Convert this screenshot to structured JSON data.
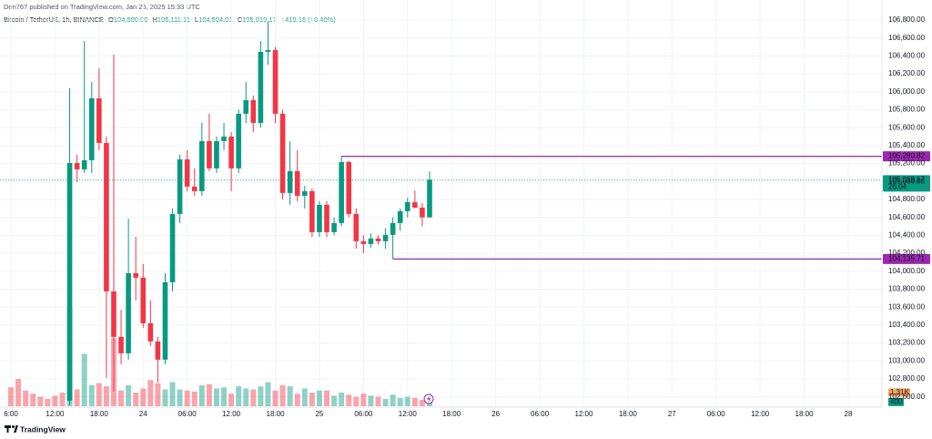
{
  "header": {
    "publisher": "Den767 published on TradingView.com, Jan 25, 2025 15:33 UTC"
  },
  "chart_data": {
    "type": "candlestick",
    "symbol": "Bitcoin / TetherUS, 1h, BINANCE",
    "legend": [
      {
        "label": "O",
        "value": "104,600.00"
      },
      {
        "label": "H",
        "value": "105,111.11"
      },
      {
        "label": "L",
        "value": "104,594.01"
      },
      {
        "label": "C",
        "value": "105,019.17"
      }
    ],
    "change": "+419.16 (+0.40%)",
    "categories": [
      "6:00",
      null,
      null,
      null,
      null,
      null,
      "12:00",
      null,
      null,
      null,
      null,
      null,
      "18:00",
      null,
      null,
      null,
      null,
      null,
      "24",
      null,
      null,
      null,
      null,
      null,
      "06:00",
      null,
      null,
      null,
      null,
      null,
      "12:00",
      null,
      null,
      null,
      null,
      null,
      "18:00",
      null,
      null,
      null,
      null,
      null,
      "25",
      null,
      null,
      null,
      null,
      null,
      "06:00",
      null,
      null,
      null,
      null,
      null,
      "12:00",
      null,
      null,
      null,
      null,
      null,
      "18:00",
      null,
      null,
      null,
      null,
      null,
      "26",
      null,
      null,
      null,
      null,
      null,
      "06:00",
      null,
      null,
      null,
      null,
      null,
      "12:00",
      null,
      null,
      null,
      null,
      null,
      "18:00",
      null,
      null,
      null,
      null,
      null,
      "27",
      null,
      null,
      null,
      null,
      null,
      "06:00",
      null,
      null,
      null,
      null,
      null,
      "12:00",
      null,
      null,
      null,
      null,
      null,
      "18:00",
      null,
      null,
      null,
      null,
      null,
      "28",
      null,
      null,
      null,
      null
    ],
    "open": [
      null,
      null,
      null,
      null,
      null,
      null,
      null,
      null,
      102557,
      105206,
      105135,
      105237,
      105927,
      105430,
      103775,
      103268,
      103085,
      103978,
      103928,
      103420,
      103217,
      103014,
      103877,
      104638,
      105247,
      104943,
      104892,
      105450,
      105146,
      105450,
      105501,
      105146,
      105755,
      105907,
      105653,
      106445,
      106465,
      105755,
      104872,
      105115,
      104841,
      104892,
      104435,
      104740,
      104435,
      104537,
      105217,
      104638,
      104334,
      104303,
      104364,
      104334,
      104405,
      104537,
      104669,
      104770,
      104709,
      104600,
      null,
      null,
      null,
      null,
      null,
      null,
      null,
      null,
      null,
      null,
      null,
      null,
      null,
      null,
      null,
      null,
      null,
      null,
      null,
      null,
      null,
      null,
      null,
      null,
      null,
      null,
      null,
      null,
      null,
      null,
      null,
      null,
      null,
      null,
      null,
      null,
      null,
      null,
      null,
      null,
      null,
      null,
      null,
      null,
      null,
      null,
      null,
      null,
      null,
      null,
      null,
      null,
      null,
      null,
      null,
      null,
      null,
      null,
      null,
      null,
      null
    ],
    "high": [
      null,
      null,
      null,
      null,
      null,
      null,
      null,
      null,
      106039,
      105298,
      106567,
      106110,
      106262,
      105501,
      106414,
      103572,
      104587,
      104384,
      104080,
      103674,
      103268,
      103978,
      104700,
      105298,
      105349,
      105146,
      105653,
      105755,
      105501,
      105653,
      105550,
      105800,
      106110,
      105960,
      106567,
      106780,
      106500,
      105800,
      105450,
      105350,
      104950,
      104920,
      104780,
      104780,
      104600,
      105280.82,
      105230,
      104700,
      104400,
      104420,
      104400,
      104480,
      104600,
      104700,
      104820,
      104900,
      104760,
      105111.11,
      null,
      null,
      null,
      null,
      null,
      null,
      null,
      null,
      null,
      null,
      null,
      null,
      null,
      null,
      null,
      null,
      null,
      null,
      null,
      null,
      null,
      null,
      null,
      null,
      null,
      null,
      null,
      null,
      null,
      null,
      null,
      null,
      null,
      null,
      null,
      null,
      null,
      null,
      null,
      null,
      null,
      null,
      null,
      null,
      null,
      null,
      null,
      null,
      null,
      null,
      null,
      null,
      null,
      null,
      null,
      null,
      null,
      null,
      null,
      null,
      null
    ],
    "low": [
      null,
      null,
      null,
      null,
      null,
      null,
      null,
      null,
      102506,
      104993,
      105095,
      105095,
      105349,
      102811,
      102659,
      102963,
      103014,
      103674,
      103369,
      103166,
      102760,
      102963,
      103775,
      104537,
      104892,
      104841,
      104841,
      105115,
      105095,
      105349,
      104892,
      105095,
      105650,
      105550,
      105600,
      106300,
      105650,
      104800,
      104740,
      104780,
      104700,
      104380,
      104384,
      104380,
      104400,
      104500,
      104600,
      104250,
      104200,
      104260,
      104300,
      104250,
      104135.71,
      104450,
      104600,
      104700,
      104500,
      104594.01,
      null,
      null,
      null,
      null,
      null,
      null,
      null,
      null,
      null,
      null,
      null,
      null,
      null,
      null,
      null,
      null,
      null,
      null,
      null,
      null,
      null,
      null,
      null,
      null,
      null,
      null,
      null,
      null,
      null,
      null,
      null,
      null,
      null,
      null,
      null,
      null,
      null,
      null,
      null,
      null,
      null,
      null,
      null,
      null,
      null,
      null,
      null,
      null,
      null,
      null,
      null,
      null,
      null,
      null,
      null,
      null,
      null,
      null,
      null,
      null,
      null
    ],
    "close": [
      null,
      null,
      null,
      null,
      null,
      null,
      null,
      null,
      105206,
      105135,
      105237,
      105927,
      105430,
      103775,
      103268,
      103085,
      103978,
      103928,
      103420,
      103217,
      103014,
      103877,
      104638,
      105247,
      104943,
      104892,
      105450,
      105146,
      105450,
      105501,
      105146,
      105755,
      105907,
      105653,
      106445,
      106465,
      105755,
      104872,
      105115,
      104841,
      104892,
      104435,
      104740,
      104435,
      104537,
      105217,
      104638,
      104334,
      104303,
      104364,
      104334,
      104405,
      104537,
      104669,
      104770,
      104709,
      104600,
      105019.17,
      null,
      null,
      null,
      null,
      null,
      null,
      null,
      null,
      null,
      null,
      null,
      null,
      null,
      null,
      null,
      null,
      null,
      null,
      null,
      null,
      null,
      null,
      null,
      null,
      null,
      null,
      null,
      null,
      null,
      null,
      null,
      null,
      null,
      null,
      null,
      null,
      null,
      null,
      null,
      null,
      null,
      null,
      null,
      null,
      null,
      null,
      null,
      null,
      null,
      null,
      null,
      null,
      null,
      null,
      null,
      null,
      null,
      null,
      null,
      null,
      null
    ],
    "volume": [
      1800,
      2600,
      1500,
      1200,
      900,
      700,
      1000,
      1300,
      9500,
      1600,
      5000,
      2000,
      2200,
      1900,
      6500,
      1500,
      2000,
      1300,
      1700,
      2500,
      2200,
      1600,
      2300,
      1600,
      1500,
      1400,
      2000,
      2100,
      1700,
      1800,
      1200,
      1900,
      1700,
      1600,
      1900,
      2300,
      1500,
      2000,
      1900,
      1200,
      1700,
      1300,
      1500,
      1500,
      1000,
      1300,
      1100,
      900,
      1200,
      1000,
      900,
      700,
      1100,
      800,
      900,
      800,
      600,
      400,
      null,
      null,
      null,
      null,
      null,
      null,
      null,
      null,
      null,
      null,
      null,
      null,
      null,
      null,
      null,
      null,
      null,
      null,
      null,
      null,
      null,
      null,
      null,
      null,
      null,
      null,
      null,
      null,
      null,
      null,
      null,
      null,
      null,
      null,
      null,
      null,
      null,
      null,
      null,
      null,
      null,
      null,
      null,
      null,
      null,
      null,
      null,
      null,
      null,
      null,
      null,
      null,
      null,
      null,
      null,
      null,
      null,
      null,
      null,
      null,
      null
    ],
    "up_color": "#089981",
    "down_color": "#f23645",
    "ylim": [
      102485,
      107023
    ],
    "yticks": [
      {
        "value": 102600,
        "label": "102,600.00"
      },
      {
        "value": 102800,
        "label": "102,800.00"
      },
      {
        "value": 103000,
        "label": "103,000.00"
      },
      {
        "value": 103200,
        "label": "103,200.00"
      },
      {
        "value": 103400,
        "label": "103,400.00"
      },
      {
        "value": 103600,
        "label": "103,600.00"
      },
      {
        "value": 103800,
        "label": "103,800.00"
      },
      {
        "value": 104000,
        "label": "104,000.00"
      },
      {
        "value": 104200,
        "label": "104,200.00"
      },
      {
        "value": 104400,
        "label": "104,400.00"
      },
      {
        "value": 104600,
        "label": "104,600.00"
      },
      {
        "value": 104800,
        "label": "104,800.00"
      },
      {
        "value": 105000,
        "label": "105,000.00"
      },
      {
        "value": 105200,
        "label": "105,200.00"
      },
      {
        "value": 105400,
        "label": "105,400.00"
      },
      {
        "value": 105600,
        "label": "105,600.00"
      },
      {
        "value": 105800,
        "label": "105,800.00"
      },
      {
        "value": 106000,
        "label": "106,000.00"
      },
      {
        "value": 106200,
        "label": "106,200.00"
      },
      {
        "value": 106400,
        "label": "106,400.00"
      },
      {
        "value": 106600,
        "label": "106,600.00"
      },
      {
        "value": 106800,
        "label": "106,800.00"
      }
    ],
    "volume_ylim": [
      0,
      10000
    ],
    "grid": true,
    "last_price": {
      "value": 105019.17,
      "label": "105,019.17",
      "countdown": "26:04"
    },
    "levels": [
      {
        "value": 105280.82,
        "label": "105,280.82",
        "color": "#9c27b0"
      },
      {
        "value": 104135.71,
        "label": "104,135.71",
        "color": "#9c27b0"
      }
    ],
    "volume_ma": {
      "value": 1310,
      "label": "1.31K",
      "color": "#f7a35c"
    }
  },
  "footer": {
    "brand": "TradingView"
  }
}
